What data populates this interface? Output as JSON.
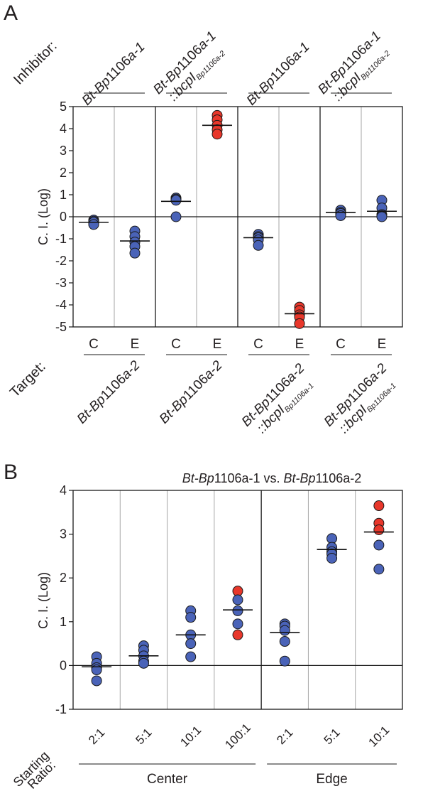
{
  "panels": {
    "a": {
      "letter": "A",
      "inhibitor_label": "Inhibitor:",
      "target_label": "Target:",
      "ylabel": "C. I. (Log)",
      "inhibitors": [
        {
          "line1_pre": "Bt-Bp",
          "line1_mid": "1106",
          "line1_post": "a-1",
          "line2_prefix": "",
          "line2_sub": ""
        },
        {
          "line1_pre": "Bt-Bp",
          "line1_mid": "1106",
          "line1_post": "a-1",
          "line2_prefix": "::bcpI",
          "line2_sub": "Bp1106a-2"
        },
        {
          "line1_pre": "Bt-Bp",
          "line1_mid": "1106",
          "line1_post": "a-1",
          "line2_prefix": "",
          "line2_sub": ""
        },
        {
          "line1_pre": "Bt-Bp",
          "line1_mid": "1106",
          "line1_post": "a-1",
          "line2_prefix": "::bcpI",
          "line2_sub": "Bp1106a-2"
        }
      ],
      "targets": [
        {
          "line1_pre": "Bt-Bp",
          "line1_mid": "1106",
          "line1_post": "a-2",
          "line2_prefix": "",
          "line2_sub": ""
        },
        {
          "line1_pre": "Bt-Bp",
          "line1_mid": "1106",
          "line1_post": "a-2",
          "line2_prefix": "",
          "line2_sub": ""
        },
        {
          "line1_pre": "Bt-Bp",
          "line1_mid": "1106",
          "line1_post": "a-2",
          "line2_prefix": "::bcpI",
          "line2_sub": "Bp1106a-1"
        },
        {
          "line1_pre": "Bt-Bp",
          "line1_mid": "1106",
          "line1_post": "a-2",
          "line2_prefix": "::bcpI",
          "line2_sub": "Bp1106a-1"
        }
      ]
    },
    "b": {
      "letter": "B",
      "title_pre1": "Bt-Bp",
      "title_mid1": "1106a-1 vs. ",
      "title_pre2": "Bt-Bp",
      "title_mid2": "1106a-2",
      "ylabel": "C. I. (Log)",
      "starting_label_1": "Starting",
      "starting_label_2": "Ratio:",
      "groups": [
        "Center",
        "Edge"
      ]
    }
  },
  "chart_data": [
    {
      "panel": "A",
      "type": "scatter",
      "ylabel": "C. I. (Log)",
      "ylim": [
        -5,
        5
      ],
      "yticks": [
        5,
        4,
        3,
        2,
        1,
        0,
        -1,
        -2,
        -3,
        -4,
        -5
      ],
      "categories": [
        "C",
        "E",
        "C",
        "E",
        "C",
        "E",
        "C",
        "E"
      ],
      "point_color_blue": "#4a63b8",
      "point_color_red": "#e8372b",
      "series": [
        {
          "category_index": 0,
          "color": "blue",
          "values": [
            -0.15,
            -0.3,
            -0.2,
            -0.25,
            -0.35
          ],
          "mean": -0.25
        },
        {
          "category_index": 1,
          "color": "blue",
          "values": [
            -0.65,
            -0.9,
            -1.15,
            -1.35,
            -1.65
          ],
          "mean": -1.1
        },
        {
          "category_index": 2,
          "color": "blue",
          "values": [
            0.85,
            0.85,
            0.8,
            0.75,
            0.0
          ],
          "mean": 0.7
        },
        {
          "category_index": 3,
          "color": "red",
          "values": [
            4.6,
            4.4,
            4.15,
            3.95,
            3.75
          ],
          "mean": 4.15
        },
        {
          "category_index": 4,
          "color": "blue",
          "values": [
            -0.8,
            -0.9,
            -0.95,
            -1.05,
            -1.3
          ],
          "mean": -0.95
        },
        {
          "category_index": 5,
          "color": "red",
          "values": [
            -4.1,
            -4.25,
            -4.45,
            -4.55,
            -4.85
          ],
          "mean": -4.4
        },
        {
          "category_index": 6,
          "color": "blue",
          "values": [
            0.3,
            0.2,
            0.1,
            0.15,
            0.05
          ],
          "mean": 0.2
        },
        {
          "category_index": 7,
          "color": "blue",
          "values": [
            0.75,
            0.4,
            0.1,
            0.05,
            0.0
          ],
          "mean": 0.25
        }
      ]
    },
    {
      "panel": "B",
      "type": "scatter",
      "title": "Bt-Bp1106a-1 vs. Bt-Bp1106a-2",
      "ylabel": "C. I. (Log)",
      "ylim": [
        -1,
        4
      ],
      "yticks": [
        4,
        3,
        2,
        1,
        0,
        -1
      ],
      "categories": [
        "2:1",
        "5:1",
        "10:1",
        "100:1",
        "2:1",
        "5:1",
        "10:1"
      ],
      "groups": [
        {
          "name": "Center",
          "category_indices": [
            0,
            1,
            2,
            3
          ]
        },
        {
          "name": "Edge",
          "category_indices": [
            4,
            5,
            6
          ]
        }
      ],
      "series": [
        {
          "category_index": 0,
          "points": [
            {
              "y": 0.2,
              "color": "blue"
            },
            {
              "y": 0.05,
              "color": "blue"
            },
            {
              "y": -0.05,
              "color": "blue"
            },
            {
              "y": -0.1,
              "color": "blue"
            },
            {
              "y": -0.35,
              "color": "blue"
            }
          ],
          "mean": -0.03
        },
        {
          "category_index": 1,
          "points": [
            {
              "y": 0.45,
              "color": "blue"
            },
            {
              "y": 0.35,
              "color": "blue"
            },
            {
              "y": 0.22,
              "color": "blue"
            },
            {
              "y": 0.1,
              "color": "blue"
            },
            {
              "y": 0.05,
              "color": "blue"
            }
          ],
          "mean": 0.22
        },
        {
          "category_index": 2,
          "points": [
            {
              "y": 1.25,
              "color": "blue"
            },
            {
              "y": 1.1,
              "color": "blue"
            },
            {
              "y": 0.7,
              "color": "blue"
            },
            {
              "y": 0.5,
              "color": "blue"
            },
            {
              "y": 0.2,
              "color": "blue"
            }
          ],
          "mean": 0.7
        },
        {
          "category_index": 3,
          "points": [
            {
              "y": 1.7,
              "color": "red"
            },
            {
              "y": 1.5,
              "color": "blue"
            },
            {
              "y": 1.25,
              "color": "blue"
            },
            {
              "y": 0.95,
              "color": "blue"
            },
            {
              "y": 0.7,
              "color": "red"
            }
          ],
          "mean": 1.27
        },
        {
          "category_index": 4,
          "points": [
            {
              "y": 0.95,
              "color": "blue"
            },
            {
              "y": 0.9,
              "color": "blue"
            },
            {
              "y": 0.8,
              "color": "blue"
            },
            {
              "y": 0.55,
              "color": "blue"
            },
            {
              "y": 0.1,
              "color": "blue"
            }
          ],
          "mean": 0.75
        },
        {
          "category_index": 5,
          "points": [
            {
              "y": 2.9,
              "color": "blue"
            },
            {
              "y": 2.7,
              "color": "blue"
            },
            {
              "y": 2.6,
              "color": "blue"
            },
            {
              "y": 2.55,
              "color": "blue"
            },
            {
              "y": 2.45,
              "color": "blue"
            }
          ],
          "mean": 2.65
        },
        {
          "category_index": 6,
          "points": [
            {
              "y": 3.65,
              "color": "red"
            },
            {
              "y": 3.25,
              "color": "red"
            },
            {
              "y": 3.1,
              "color": "red"
            },
            {
              "y": 2.75,
              "color": "blue"
            },
            {
              "y": 2.2,
              "color": "blue"
            }
          ],
          "mean": 3.05
        }
      ]
    }
  ]
}
